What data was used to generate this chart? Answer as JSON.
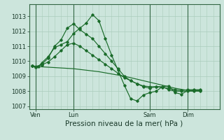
{
  "bg_color": "#cce5dc",
  "grid_color_major": "#aaccbb",
  "grid_color_minor": "#bbddcc",
  "line_color": "#1a6b2a",
  "spine_color": "#336644",
  "title": "Pression niveau de la mer( hPa )",
  "title_fontsize": 7.5,
  "ylim": [
    1006.8,
    1013.8
  ],
  "yticks": [
    1007,
    1008,
    1009,
    1010,
    1011,
    1012,
    1013
  ],
  "tick_fontsize": 6,
  "xtick_labels": [
    "Ven",
    "Lun",
    "Sam",
    "Dim"
  ],
  "xtick_positions": [
    2,
    14,
    38,
    50
  ],
  "vline_positions": [
    2,
    14,
    38,
    50
  ],
  "xlim": [
    0,
    60
  ],
  "series1": {
    "x": [
      1,
      2,
      3,
      4,
      6,
      8,
      10,
      12,
      14,
      16,
      18,
      20,
      22,
      24,
      26,
      28,
      30,
      32,
      34,
      36,
      38,
      40,
      42,
      44,
      46,
      48,
      50,
      52,
      54
    ],
    "y": [
      1009.7,
      1009.6,
      1009.65,
      1009.9,
      1010.3,
      1010.9,
      1011.1,
      1011.3,
      1011.85,
      1012.2,
      1012.55,
      1013.1,
      1012.7,
      1011.5,
      1010.4,
      1009.4,
      1008.4,
      1007.5,
      1007.35,
      1007.75,
      1007.9,
      1008.0,
      1008.3,
      1008.35,
      1007.9,
      1007.8,
      1008.05,
      1008.05,
      1008.05
    ]
  },
  "series2": {
    "x": [
      1,
      2,
      4,
      6,
      8,
      10,
      12,
      14,
      16,
      18,
      20,
      22,
      24,
      26,
      28,
      30,
      32,
      34,
      36,
      38,
      40,
      42,
      44,
      46,
      48,
      50,
      52,
      54
    ],
    "y": [
      1009.7,
      1009.6,
      1009.8,
      1010.2,
      1011.0,
      1011.4,
      1012.2,
      1012.5,
      1012.1,
      1011.8,
      1011.5,
      1011.0,
      1010.5,
      1010.0,
      1009.5,
      1009.0,
      1008.7,
      1008.5,
      1008.3,
      1008.2,
      1008.3,
      1008.3,
      1008.1,
      1008.0,
      1008.0,
      1008.0,
      1008.0,
      1008.0
    ]
  },
  "series3": {
    "x": [
      1,
      2,
      4,
      6,
      8,
      10,
      12,
      14,
      16,
      18,
      20,
      22,
      24,
      26,
      28,
      30,
      32,
      34,
      36,
      38,
      40,
      42,
      44,
      46,
      48,
      50,
      52,
      54
    ],
    "y": [
      1009.7,
      1009.65,
      1009.75,
      1009.95,
      1010.3,
      1010.7,
      1011.1,
      1011.2,
      1011.0,
      1010.7,
      1010.4,
      1010.1,
      1009.8,
      1009.5,
      1009.2,
      1008.9,
      1008.7,
      1008.5,
      1008.35,
      1008.3,
      1008.3,
      1008.25,
      1008.2,
      1008.1,
      1008.05,
      1008.1,
      1008.1,
      1008.1
    ]
  },
  "series4": {
    "x": [
      1,
      2,
      6,
      10,
      14,
      18,
      22,
      26,
      30,
      34,
      38,
      42,
      46,
      50,
      54
    ],
    "y": [
      1009.7,
      1009.65,
      1009.6,
      1009.55,
      1009.5,
      1009.4,
      1009.3,
      1009.15,
      1009.0,
      1008.8,
      1008.6,
      1008.4,
      1008.2,
      1008.05,
      1008.05
    ]
  }
}
